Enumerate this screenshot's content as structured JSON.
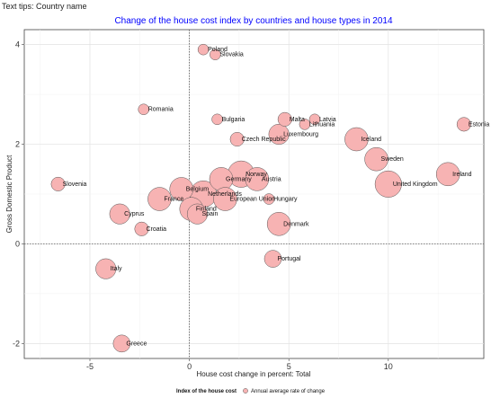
{
  "header": {
    "tips": "Text tips: Country name"
  },
  "chart_data": {
    "type": "scatter",
    "title": "Change of the house cost index by countries and house types in 2014",
    "xlabel": "House cost change in percent: Total",
    "ylabel": "Gross Domestic Product",
    "xlim": [
      -8.3,
      14.8
    ],
    "ylim": [
      -2.3,
      4.3
    ],
    "xticks": [
      -5,
      0,
      5,
      10
    ],
    "yticks": [
      -2,
      0,
      2,
      4
    ],
    "grid": true,
    "reference_lines": {
      "x": 0,
      "y": 0
    },
    "legend": {
      "title": "Index of the house cost",
      "label": "Annual average rate of change",
      "position": "bottom"
    },
    "colors": {
      "fill": "#f7b3b3",
      "stroke": "#555555",
      "title": "#0000ff"
    },
    "points": [
      {
        "label": "Poland",
        "x": 0.7,
        "y": 3.9,
        "size": 2
      },
      {
        "label": "Slovakia",
        "x": 1.3,
        "y": 3.8,
        "size": 2
      },
      {
        "label": "Romania",
        "x": -2.3,
        "y": 2.7,
        "size": 2
      },
      {
        "label": "Bulgaria",
        "x": 1.4,
        "y": 2.5,
        "size": 2
      },
      {
        "label": "Malta",
        "x": 4.8,
        "y": 2.5,
        "size": 3
      },
      {
        "label": "Latvia",
        "x": 6.3,
        "y": 2.5,
        "size": 2
      },
      {
        "label": "Lithuania",
        "x": 5.8,
        "y": 2.4,
        "size": 2
      },
      {
        "label": "Estonia",
        "x": 13.8,
        "y": 2.4,
        "size": 3
      },
      {
        "label": "Luxembourg",
        "x": 4.5,
        "y": 2.2,
        "size": 5
      },
      {
        "label": "Czech Republic",
        "x": 2.4,
        "y": 2.1,
        "size": 3
      },
      {
        "label": "Iceland",
        "x": 8.4,
        "y": 2.1,
        "size": 6
      },
      {
        "label": "Sweden",
        "x": 9.4,
        "y": 1.7,
        "size": 6
      },
      {
        "label": "Ireland",
        "x": 13,
        "y": 1.4,
        "size": 6
      },
      {
        "label": "Norway",
        "x": 2.6,
        "y": 1.4,
        "size": 7
      },
      {
        "label": "Germany",
        "x": 1.6,
        "y": 1.3,
        "size": 6
      },
      {
        "label": "Austria",
        "x": 3.4,
        "y": 1.3,
        "size": 6
      },
      {
        "label": "United Kingdom",
        "x": 10,
        "y": 1.2,
        "size": 7
      },
      {
        "label": "Slovenia",
        "x": -6.6,
        "y": 1.2,
        "size": 3
      },
      {
        "label": "Belgium",
        "x": -0.4,
        "y": 1.1,
        "size": 6
      },
      {
        "label": "Netherlands",
        "x": 0.7,
        "y": 1,
        "size": 7
      },
      {
        "label": "France",
        "x": -1.5,
        "y": 0.9,
        "size": 6
      },
      {
        "label": "European Union",
        "x": 1.8,
        "y": 0.9,
        "size": 6
      },
      {
        "label": "Hungary",
        "x": 4,
        "y": 0.9,
        "size": 2
      },
      {
        "label": "Finland",
        "x": 0.1,
        "y": 0.7,
        "size": 6
      },
      {
        "label": "Cyprus",
        "x": -3.5,
        "y": 0.6,
        "size": 5
      },
      {
        "label": "Spain",
        "x": 0.4,
        "y": 0.6,
        "size": 5
      },
      {
        "label": "Denmark",
        "x": 4.5,
        "y": 0.4,
        "size": 6
      },
      {
        "label": "Croatia",
        "x": -2.4,
        "y": 0.3,
        "size": 3
      },
      {
        "label": "Portugal",
        "x": 4.2,
        "y": -0.3,
        "size": 4
      },
      {
        "label": "Italy",
        "x": -4.2,
        "y": -0.5,
        "size": 5
      },
      {
        "label": "Greece",
        "x": -3.4,
        "y": -2,
        "size": 4
      }
    ]
  }
}
